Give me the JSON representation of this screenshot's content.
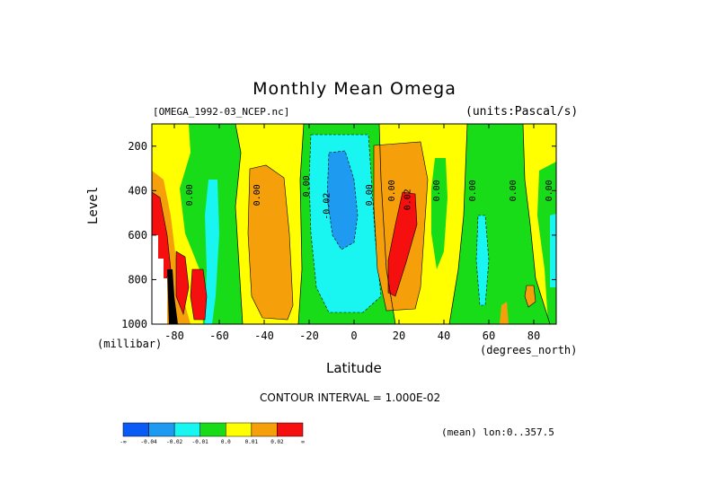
{
  "chart_data": {
    "type": "heatmap",
    "title": "Monthly Mean Omega",
    "dataset": "[OMEGA_1992-03_NCEP.nc]",
    "units": "(units:Pascal/s)",
    "xlabel": "Latitude",
    "x_unit": "(degrees_north)",
    "ylabel": "Level",
    "y_unit": "(millibar)",
    "xlim": [
      -90,
      90
    ],
    "ylim": [
      1000,
      100
    ],
    "x_ticks": [
      "-80",
      "-60",
      "-40",
      "-20",
      "0",
      "20",
      "40",
      "60",
      "80"
    ],
    "x_tick_values": [
      -80,
      -60,
      -40,
      -20,
      0,
      20,
      40,
      60,
      80
    ],
    "y_ticks": [
      "200",
      "400",
      "600",
      "800",
      "1000"
    ],
    "y_tick_values": [
      200,
      400,
      600,
      800,
      1000
    ],
    "contour_interval": "CONTOUR INTERVAL = 1.000E-02",
    "contour_labels": [
      "0.00",
      "0.00",
      "0.00",
      "0.00",
      "-0.02",
      "0.00",
      "0.02",
      "0.00",
      "0.00",
      "0.00",
      "0.00"
    ],
    "colorbar": {
      "colors": [
        "#0a5af5",
        "#1e9bf0",
        "#19f5f0",
        "#19dc19",
        "#ffff00",
        "#f5a00a",
        "#f50f0f"
      ],
      "labels": [
        "-∞",
        "-0.04",
        "-0.02",
        "-0.01",
        "0.0",
        "0.01",
        "0.02",
        "∞"
      ]
    },
    "field_bands": [
      {
        "x": [
          -90,
          -84
        ],
        "value": "positive_strong"
      },
      {
        "x": [
          -84,
          -70
        ],
        "value": "positive"
      },
      {
        "x": [
          -70,
          -62
        ],
        "value": "negative"
      },
      {
        "x": [
          -62,
          -48
        ],
        "value": "near_zero_negative"
      },
      {
        "x": [
          -48,
          -26
        ],
        "value": "positive"
      },
      {
        "x": [
          -26,
          8
        ],
        "value": "negative_strong"
      },
      {
        "x": [
          8,
          32
        ],
        "value": "positive_strong"
      },
      {
        "x": [
          32,
          52
        ],
        "value": "near_zero"
      },
      {
        "x": [
          52,
          72
        ],
        "value": "near_zero_negative"
      },
      {
        "x": [
          72,
          90
        ],
        "value": "positive"
      }
    ],
    "footer": "(mean) lon:0..357.5"
  }
}
